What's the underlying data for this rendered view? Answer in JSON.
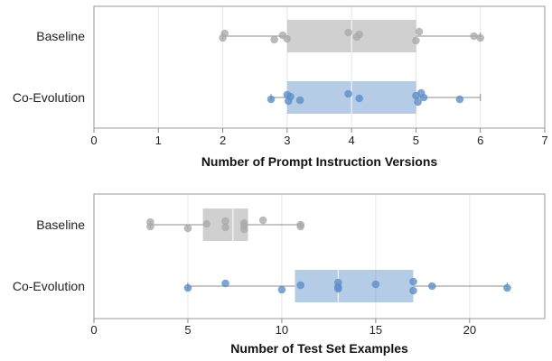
{
  "chart_data": [
    {
      "type": "boxplot",
      "xlabel": "Number of Prompt Instruction Versions",
      "ylabel": "",
      "xlim": [
        0,
        7
      ],
      "xticks": [
        "0",
        "1",
        "2",
        "3",
        "4",
        "5",
        "6",
        "7"
      ],
      "grid": true,
      "categories": [
        "Baseline",
        "Co-Evolution"
      ],
      "series": [
        {
          "name": "Baseline",
          "color": "#aaaaaa",
          "whisker": [
            2,
            6
          ],
          "box": [
            3,
            5
          ],
          "median": 4,
          "points": [
            2,
            2.03,
            2.8,
            2.93,
            3.0,
            3.95,
            4.08,
            4.12,
            5.0,
            5.05,
            5.9,
            6.0
          ]
        },
        {
          "name": "Co-Evolution",
          "color": "#5b8fc7",
          "whisker": [
            2.75,
            6
          ],
          "box": [
            3,
            5
          ],
          "median": 4,
          "points": [
            2.75,
            3.0,
            3.02,
            3.05,
            3.2,
            3.95,
            4.12,
            5.0,
            5.03,
            5.08,
            5.12,
            5.68
          ]
        }
      ]
    },
    {
      "type": "boxplot",
      "xlabel": "Number of Test Set Examples",
      "ylabel": "",
      "xlim": [
        0,
        24
      ],
      "xticks": [
        "0",
        "5",
        "10",
        "15",
        "20"
      ],
      "grid": true,
      "categories": [
        "Baseline",
        "Co-Evolution"
      ],
      "series": [
        {
          "name": "Baseline",
          "color": "#aaaaaa",
          "whisker": [
            3,
            11
          ],
          "box": [
            5.8,
            8.2
          ],
          "median": 7.4,
          "points": [
            3,
            3,
            5,
            6,
            7,
            7,
            8,
            8,
            8,
            9,
            11,
            11
          ]
        },
        {
          "name": "Co-Evolution",
          "color": "#5b8fc7",
          "whisker": [
            5,
            22
          ],
          "box": [
            10.7,
            17
          ],
          "median": 13,
          "points": [
            5,
            7,
            10,
            11,
            13,
            13,
            13,
            15,
            17,
            17,
            18,
            22
          ]
        }
      ]
    }
  ]
}
